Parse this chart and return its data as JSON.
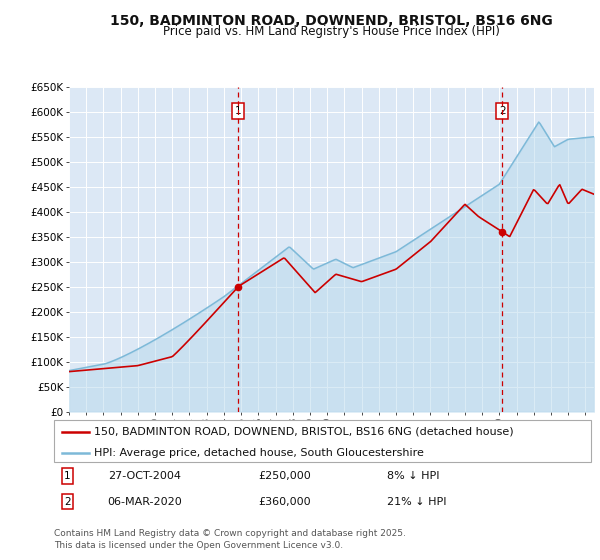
{
  "title": "150, BADMINTON ROAD, DOWNEND, BRISTOL, BS16 6NG",
  "subtitle": "Price paid vs. HM Land Registry's House Price Index (HPI)",
  "ylabel_ticks": [
    "£0",
    "£50K",
    "£100K",
    "£150K",
    "£200K",
    "£250K",
    "£300K",
    "£350K",
    "£400K",
    "£450K",
    "£500K",
    "£550K",
    "£600K",
    "£650K"
  ],
  "ytick_values": [
    0,
    50000,
    100000,
    150000,
    200000,
    250000,
    300000,
    350000,
    400000,
    450000,
    500000,
    550000,
    600000,
    650000
  ],
  "ylim": [
    0,
    650000
  ],
  "xlim_start": 1995.0,
  "xlim_end": 2025.5,
  "sale1_date": 2004.82,
  "sale1_price": 250000,
  "sale2_date": 2020.17,
  "sale2_price": 360000,
  "hpi_color": "#7db9d8",
  "hpi_fill_color": "#b8d9ed",
  "price_color": "#cc0000",
  "background_color": "#dce8f5",
  "grid_color": "#ffffff",
  "legend1_label": "150, BADMINTON ROAD, DOWNEND, BRISTOL, BS16 6NG (detached house)",
  "legend2_label": "HPI: Average price, detached house, South Gloucestershire",
  "footer": "Contains HM Land Registry data © Crown copyright and database right 2025.\nThis data is licensed under the Open Government Licence v3.0.",
  "title_fontsize": 10,
  "subtitle_fontsize": 8.5,
  "tick_fontsize": 7.5,
  "legend_fontsize": 8,
  "footer_fontsize": 6.5
}
